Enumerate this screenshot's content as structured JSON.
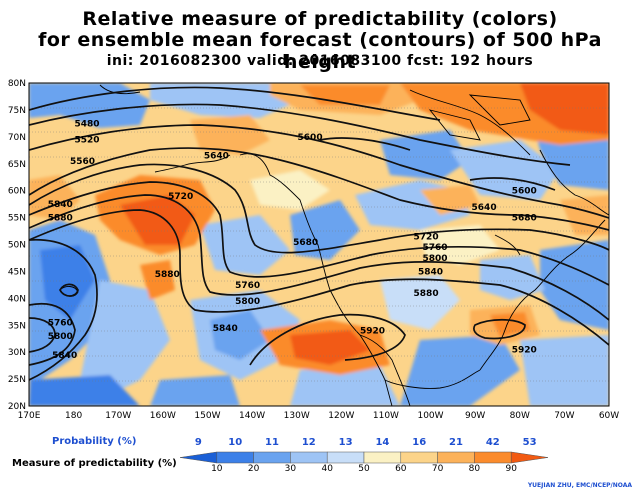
{
  "title_line1": "Relative measure of predictability (colors)",
  "title_line2": "for ensemble mean forecast (contours) of 500 hPa height",
  "title_line3": "ini: 2016082300  valid: 2016083100  fcst: 192 hours",
  "lat_labels": [
    "80N",
    "75N",
    "70N",
    "65N",
    "60N",
    "55N",
    "50N",
    "45N",
    "40N",
    "35N",
    "30N",
    "25N",
    "20N"
  ],
  "lon_labels": [
    "170E",
    "180",
    "170W",
    "160W",
    "150W",
    "140W",
    "130W",
    "120W",
    "110W",
    "100W",
    "90W",
    "80W",
    "70W",
    "60W"
  ],
  "contour_labels": [
    {
      "text": "5480",
      "lon": 183,
      "lat": 72.5
    },
    {
      "text": "5520",
      "lon": 183,
      "lat": 69.5
    },
    {
      "text": "5560",
      "lon": 182,
      "lat": 65.5
    },
    {
      "text": "5600",
      "lon": 233,
      "lat": 70
    },
    {
      "text": "5640",
      "lon": 212,
      "lat": 66.5
    },
    {
      "text": "5720",
      "lon": 204,
      "lat": 59
    },
    {
      "text": "5840",
      "lon": 177,
      "lat": 57.5
    },
    {
      "text": "5880",
      "lon": 177,
      "lat": 55
    },
    {
      "text": "5680",
      "lon": 232,
      "lat": 50.5
    },
    {
      "text": "5760",
      "lon": 219,
      "lat": 42.5
    },
    {
      "text": "5800",
      "lon": 219,
      "lat": 39.5
    },
    {
      "text": "5840",
      "lon": 214,
      "lat": 34.5
    },
    {
      "text": "5880",
      "lon": 201,
      "lat": 44.5
    },
    {
      "text": "5760",
      "lon": 177,
      "lat": 35.5
    },
    {
      "text": "5800",
      "lon": 177,
      "lat": 33
    },
    {
      "text": "5840",
      "lon": 178,
      "lat": 29.5
    },
    {
      "text": "5720",
      "lon": 259,
      "lat": 51.5
    },
    {
      "text": "5760",
      "lon": 261,
      "lat": 49.5
    },
    {
      "text": "5800",
      "lon": 261,
      "lat": 47.5
    },
    {
      "text": "5840",
      "lon": 260,
      "lat": 45
    },
    {
      "text": "5880",
      "lon": 259,
      "lat": 41
    },
    {
      "text": "5640",
      "lon": 272,
      "lat": 57
    },
    {
      "text": "5680",
      "lon": 281,
      "lat": 55
    },
    {
      "text": "5600",
      "lon": 281,
      "lat": 60
    },
    {
      "text": "5920",
      "lon": 247,
      "lat": 34
    },
    {
      "text": "5920",
      "lon": 281,
      "lat": 30.5
    }
  ],
  "legend": {
    "probability_label": "Probability (%)",
    "probability_values": [
      "9",
      "10",
      "11",
      "12",
      "13",
      "14",
      "16",
      "21",
      "42",
      "53"
    ],
    "measure_label": "Measure of predictability (%)",
    "measure_ticks": [
      "10",
      "20",
      "30",
      "40",
      "50",
      "60",
      "70",
      "80",
      "90"
    ],
    "colors": [
      "#1a5fd6",
      "#3c80e8",
      "#6aa3ef",
      "#9ec4f5",
      "#c8def8",
      "#fbf1c4",
      "#fcd48a",
      "#fcb25a",
      "#fb8b2c",
      "#f25a12"
    ]
  },
  "credit": "YUEJIAN ZHU, EMC/NCEP/NOAA"
}
